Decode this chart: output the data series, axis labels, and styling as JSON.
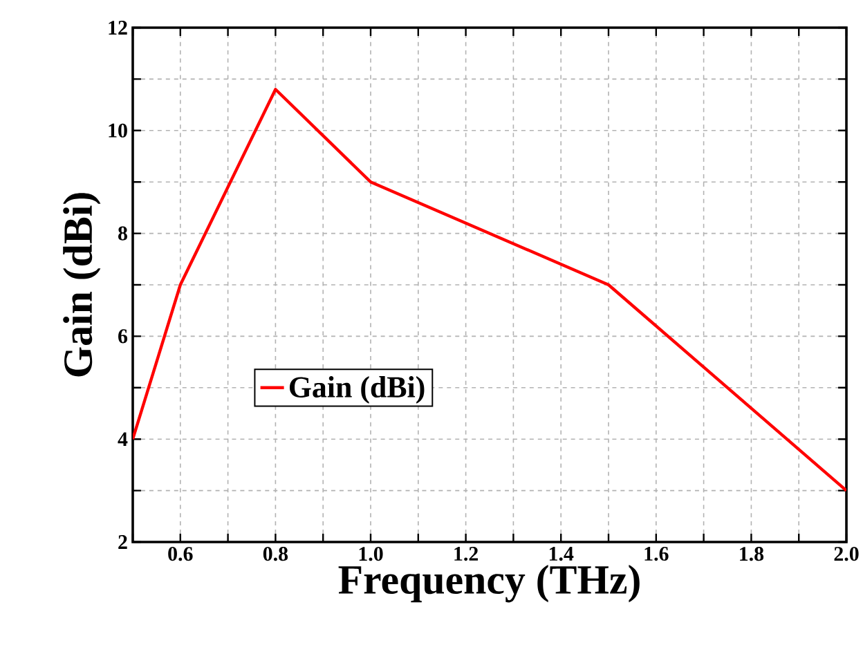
{
  "chart_data": {
    "type": "line",
    "xlabel": "Frequency (THz)",
    "ylabel": "Gain (dBi)",
    "x": [
      0.5,
      0.6,
      0.8,
      1.0,
      1.2,
      1.5,
      2.0
    ],
    "series": [
      {
        "name": "Gain (dBi)",
        "color": "#ff0000",
        "values": [
          4,
          7,
          10.8,
          9,
          8.2,
          7,
          3
        ]
      }
    ],
    "xlim": [
      0.5,
      2.0
    ],
    "xticks": [
      {
        "value": 0.5,
        "label": null
      },
      0.6,
      {
        "value": 0.7,
        "label": null
      },
      0.8,
      {
        "value": 0.9,
        "label": null
      },
      {
        "value": 1.0,
        "label": "1.0"
      },
      {
        "value": 1.1,
        "label": null
      },
      1.2,
      {
        "value": 1.3,
        "label": null
      },
      1.4,
      {
        "value": 1.5,
        "label": null
      },
      1.6,
      {
        "value": 1.7,
        "label": null
      },
      1.8,
      {
        "value": 1.9,
        "label": null
      },
      {
        "value": 2.0,
        "label": "2.0"
      }
    ],
    "ylim": [
      2,
      12
    ],
    "yticks": [
      2,
      {
        "value": 3,
        "label": null
      },
      4,
      {
        "value": 5,
        "label": null
      },
      6,
      {
        "value": 7,
        "label": null
      },
      8,
      {
        "value": 9,
        "label": null
      },
      10,
      {
        "value": 11,
        "label": null
      },
      12
    ],
    "grid": true,
    "legend": "left",
    "marker": "none",
    "line_style": "solid"
  }
}
